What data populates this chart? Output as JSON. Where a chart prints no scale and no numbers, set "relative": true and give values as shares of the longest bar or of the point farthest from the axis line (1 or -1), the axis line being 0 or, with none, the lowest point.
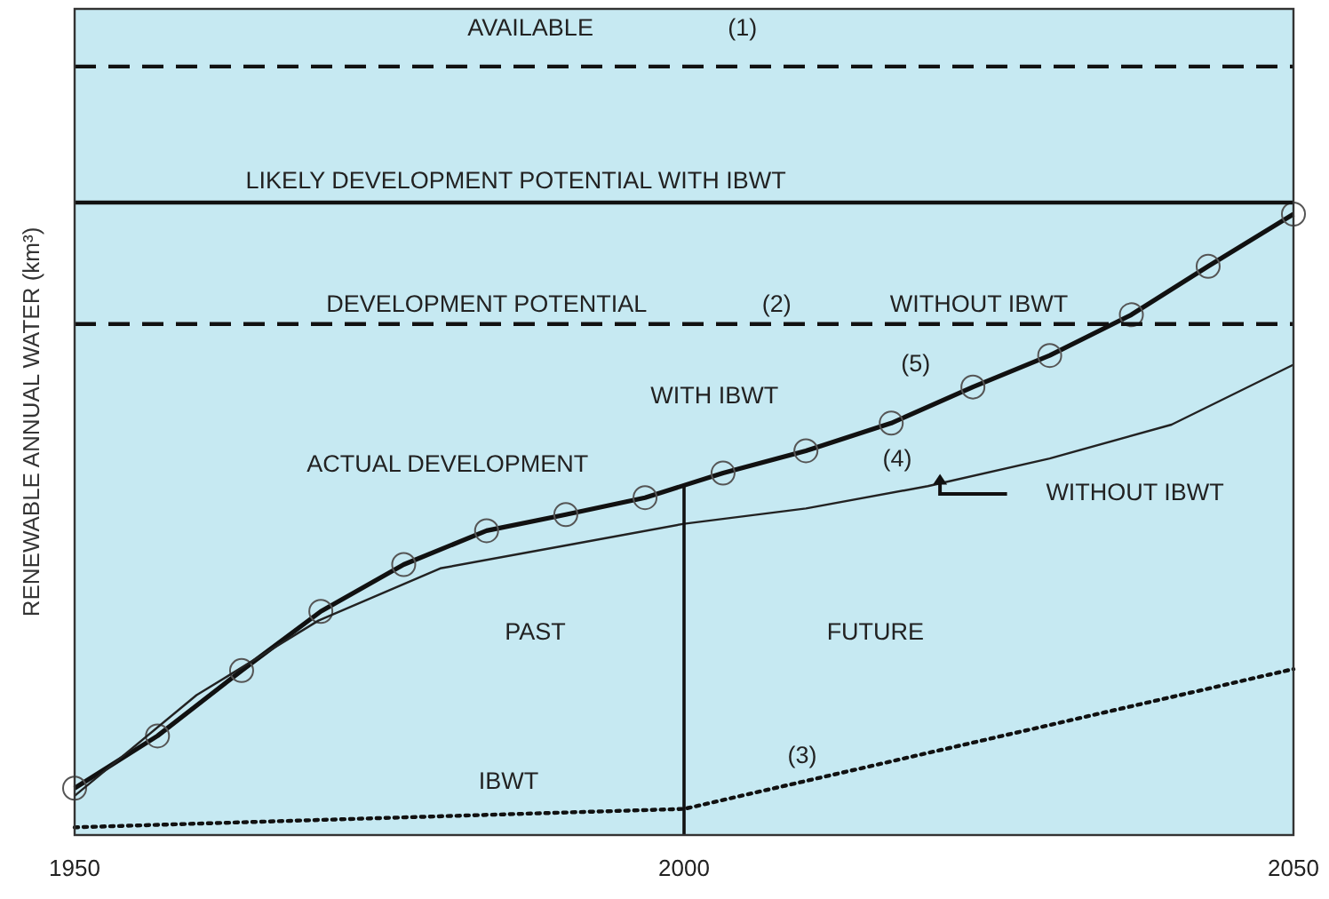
{
  "chart_data": {
    "type": "line",
    "relative": true,
    "ylabel": "RENEWABLE ANNUAL WATER (km³)",
    "xlim": [
      1950,
      2050
    ],
    "xticks": [
      1950,
      2000,
      2050
    ],
    "grid": false,
    "series": [
      {
        "color": "#111111",
        "marker": "circle",
        "line_style": "solid",
        "x": [
          1950,
          1956.8,
          1963.7,
          1970.2,
          1977,
          1983.8,
          1990.3,
          1996.8,
          2003.2,
          2010,
          2017,
          2023.7,
          2030,
          2036.7,
          2043,
          2050
        ],
        "values": [
          0.061,
          0.129,
          0.214,
          0.291,
          0.352,
          0.396,
          0.417,
          0.439,
          0.471,
          0.5,
          0.536,
          0.583,
          0.624,
          0.677,
          0.74,
          0.808
        ]
      },
      {
        "color": "#222222",
        "marker": "none",
        "line_style": "solid",
        "x": [
          1950,
          1960,
          1970,
          1980,
          1990,
          2000,
          2010,
          2020,
          2030,
          2040,
          2050
        ],
        "values": [
          0.051,
          0.182,
          0.279,
          0.347,
          0.376,
          0.405,
          0.425,
          0.454,
          0.49,
          0.534,
          0.612
        ]
      },
      {
        "color": "#111111",
        "marker": "none",
        "line_style": "dotted",
        "x": [
          1950,
          2000,
          2050
        ],
        "values": [
          0.01,
          0.034,
          0.216
        ]
      },
      {
        "color": "#111111",
        "marker": "none",
        "line_style": "dashed",
        "x": [
          1950,
          2050
        ],
        "values": [
          1,
          1
        ]
      },
      {
        "color": "#111111",
        "marker": "none",
        "line_style": "solid",
        "x": [
          1950,
          2050
        ],
        "values": [
          0.823,
          0.823
        ]
      },
      {
        "color": "#111111",
        "marker": "none",
        "line_style": "dashed",
        "x": [
          1950,
          2050
        ],
        "values": [
          0.665,
          0.665
        ]
      }
    ],
    "ref_lines": [
      {
        "axis": "x",
        "value": 2000,
        "color": "#111111"
      }
    ],
    "annotations": [
      "AVAILABLE",
      "(1)",
      "LIKELY DEVELOPMENT POTENTIAL WITH IBWT",
      "DEVELOPMENT POTENTIAL",
      "(2)",
      "WITHOUT IBWT",
      "WITH  IBWT",
      "(5)",
      "ACTUAL DEVELOPMENT",
      "(4)",
      "WITHOUT  IBWT",
      "PAST",
      "FUTURE",
      "IBWT",
      "(3)"
    ]
  }
}
